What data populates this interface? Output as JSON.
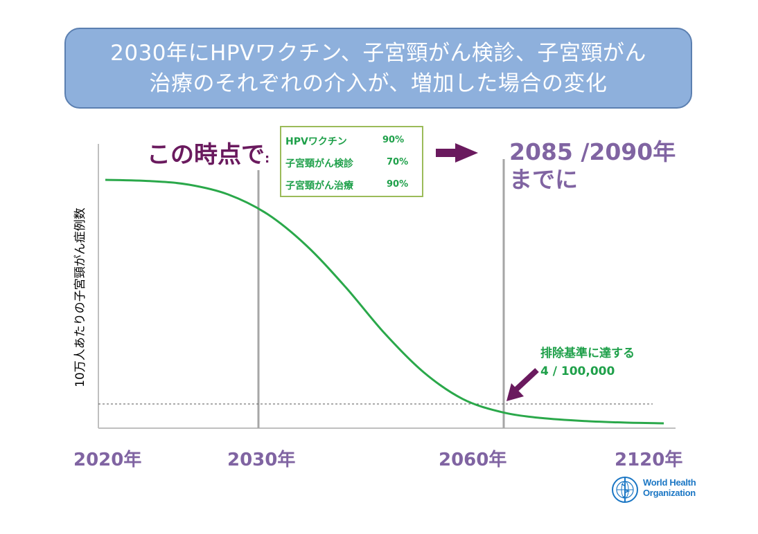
{
  "title": {
    "line1": "2030年にHPVワクチン、子宮頸がん検診、子宮頸がん",
    "line2": "治療のそれぞれの介入が、増加した場合の変化"
  },
  "chart_data": {
    "type": "line",
    "ylabel": "10万人あたりの子宮頸がん症例数",
    "x_ticks": [
      "2020年",
      "2030年",
      "2060年",
      "2120年"
    ],
    "series": [
      {
        "color": "#2aa84a",
        "points": [
          [
            0.0,
            100
          ],
          [
            0.08,
            99.5
          ],
          [
            0.15,
            98
          ],
          [
            0.22,
            94
          ],
          [
            0.29,
            86
          ],
          [
            0.36,
            73
          ],
          [
            0.43,
            56
          ],
          [
            0.5,
            37
          ],
          [
            0.57,
            21
          ],
          [
            0.64,
            10
          ],
          [
            0.71,
            4.6
          ],
          [
            0.78,
            2.2
          ],
          [
            0.86,
            0.9
          ],
          [
            0.93,
            0.3
          ],
          [
            1.0,
            0
          ]
        ]
      }
    ],
    "reference_line": {
      "label": "4 / 100,000",
      "style": "dashed"
    },
    "annotations": {
      "at_this_point": "この時点で",
      "colon": ":",
      "by_year_line1": "2085 /2090年",
      "by_year_line2": "までに",
      "elimination_line1": "排除基準に達する",
      "elimination_line2": "4 / 100,000"
    },
    "coverage": [
      {
        "label": "HPVワクチン",
        "value": "90%"
      },
      {
        "label": "子宮頸がん検診",
        "value": "70%"
      },
      {
        "label": "子宮頸がん治療",
        "value": "90%"
      }
    ],
    "colors": {
      "curve": "#2aa84a",
      "arrow": "#6a1a5e",
      "year_text": "#8064a2",
      "vline": "#a6a6a6"
    }
  },
  "logo": {
    "line1": "World Health",
    "line2": "Organization"
  }
}
